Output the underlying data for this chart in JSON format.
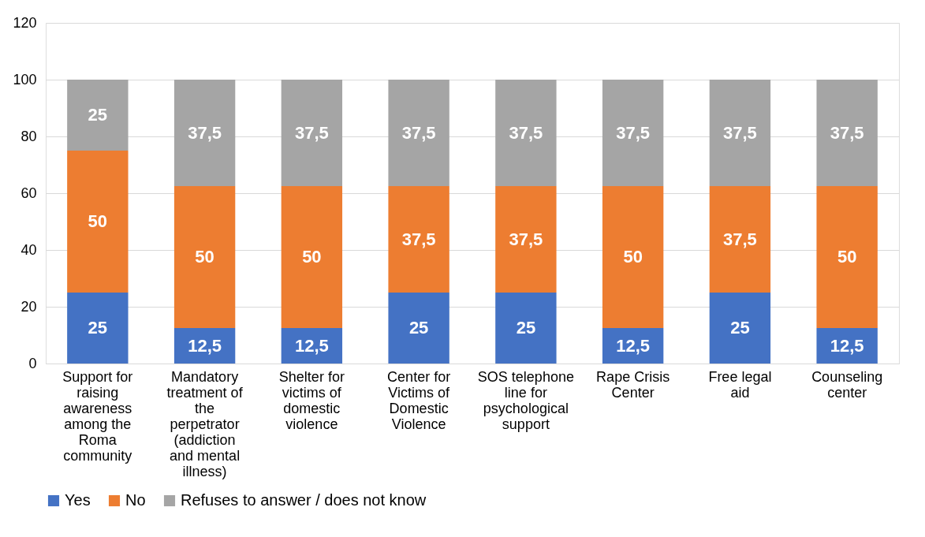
{
  "chart_data": {
    "type": "bar",
    "stacked": true,
    "categories": [
      "Support for raising awareness among the Roma community",
      "Mandatory treatment of the perpetrator (addiction and mental illness)",
      "Shelter for victims of domestic violence",
      "Center for Victims of Domestic Violence",
      "SOS telephone line for psychological support",
      "Rape Crisis Center",
      "Free legal aid",
      "Counseling center"
    ],
    "series": [
      {
        "name": "Yes",
        "color": "#4472c4",
        "values": [
          25,
          12.5,
          12.5,
          25,
          25,
          12.5,
          25,
          12.5
        ],
        "value_labels": [
          "25",
          "12,5",
          "12,5",
          "25",
          "25",
          "12,5",
          "25",
          "12,5"
        ]
      },
      {
        "name": "No",
        "color": "#ed7d31",
        "values": [
          50,
          50,
          50,
          37.5,
          37.5,
          50,
          37.5,
          50
        ],
        "value_labels": [
          "50",
          "50",
          "50",
          "37,5",
          "37,5",
          "50",
          "37,5",
          "50"
        ]
      },
      {
        "name": "Refuses to answer / does not know",
        "color": "#a5a5a5",
        "values": [
          25,
          37.5,
          37.5,
          37.5,
          37.5,
          37.5,
          37.5,
          37.5
        ],
        "value_labels": [
          "25",
          "37,5",
          "37,5",
          "37,5",
          "37,5",
          "37,5",
          "37,5",
          "37,5"
        ]
      }
    ],
    "ylim": [
      0,
      120
    ],
    "yticks": [
      0,
      20,
      40,
      60,
      80,
      100,
      120
    ],
    "grid": "y",
    "legend": "bottom"
  }
}
